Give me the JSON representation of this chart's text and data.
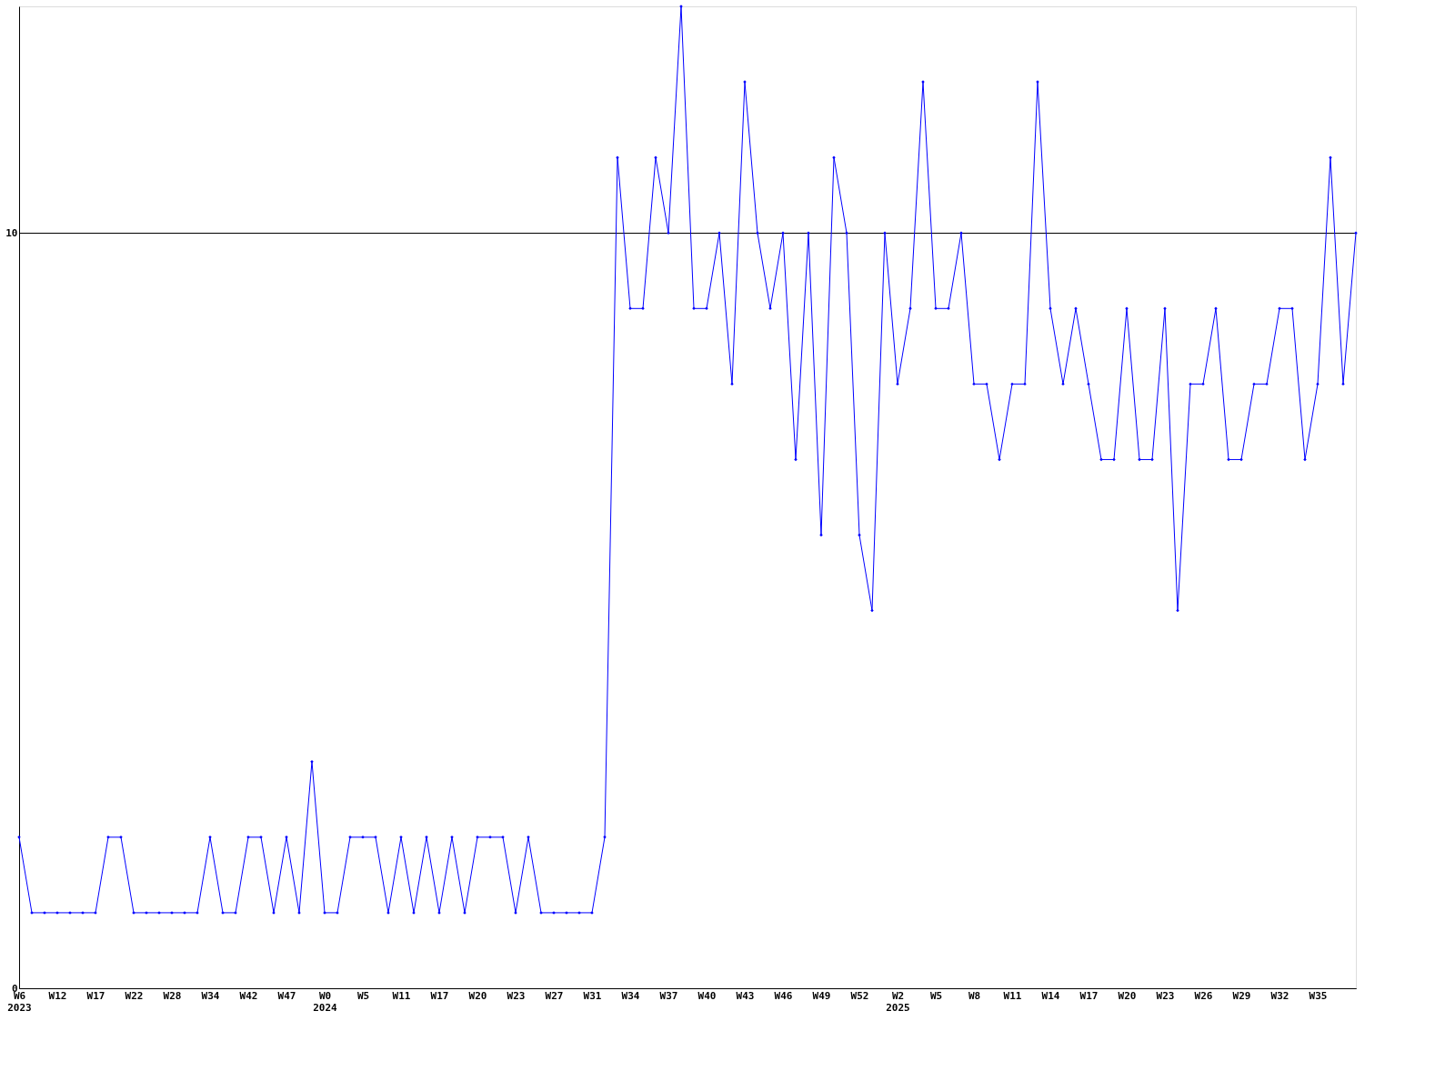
{
  "chart_data": {
    "type": "line",
    "categories": [
      "W6 2023",
      null,
      null,
      "W12",
      null,
      null,
      "W17",
      null,
      null,
      "W22",
      null,
      null,
      "W28",
      null,
      null,
      "W34",
      null,
      null,
      "W42",
      null,
      null,
      "W47",
      null,
      null,
      "W0 2024",
      null,
      null,
      "W5",
      null,
      null,
      "W11",
      null,
      null,
      "W17",
      null,
      null,
      "W20",
      null,
      null,
      "W23",
      null,
      null,
      "W27",
      null,
      null,
      "W31",
      null,
      null,
      "W34",
      null,
      null,
      "W37",
      null,
      null,
      "W40",
      null,
      null,
      "W43",
      null,
      null,
      "W46",
      null,
      null,
      "W49",
      null,
      null,
      "W52",
      null,
      null,
      "W2 2025",
      null,
      null,
      "W5",
      null,
      null,
      "W8",
      null,
      null,
      "W11",
      null,
      null,
      "W14",
      null,
      null,
      "W17",
      null,
      null,
      "W20",
      null,
      null,
      "W23",
      null,
      null,
      "W26",
      null,
      null,
      "W29",
      null,
      null,
      "W32",
      null,
      null,
      "W35",
      null,
      null,
      null
    ],
    "series": [
      {
        "color": "#0000ff",
        "values": [
          2,
          1,
          1,
          1,
          1,
          1,
          1,
          2,
          2,
          1,
          1,
          1,
          1,
          1,
          1,
          2,
          1,
          1,
          2,
          2,
          1,
          2,
          1,
          3,
          1,
          1,
          2,
          2,
          2,
          1,
          2,
          1,
          2,
          1,
          2,
          1,
          2,
          2,
          2,
          1,
          2,
          1,
          1,
          1,
          1,
          1,
          2,
          11,
          9,
          9,
          11,
          10,
          13,
          9,
          9,
          10,
          8,
          12,
          10,
          9,
          10,
          7,
          10,
          6,
          11,
          10,
          6,
          5,
          10,
          8,
          9,
          12,
          9,
          9,
          10,
          8,
          8,
          7,
          8,
          8,
          12,
          9,
          8,
          9,
          8,
          7,
          7,
          9,
          7,
          7,
          9,
          5,
          8,
          8,
          9,
          7,
          7,
          8,
          8,
          9,
          9,
          7,
          8,
          11,
          8,
          10
        ]
      }
    ],
    "ylim": [
      0,
      13
    ],
    "yticks": [
      0,
      10
    ],
    "grid": "y",
    "marker": "diamond",
    "line_style": "solid",
    "legend": false
  }
}
